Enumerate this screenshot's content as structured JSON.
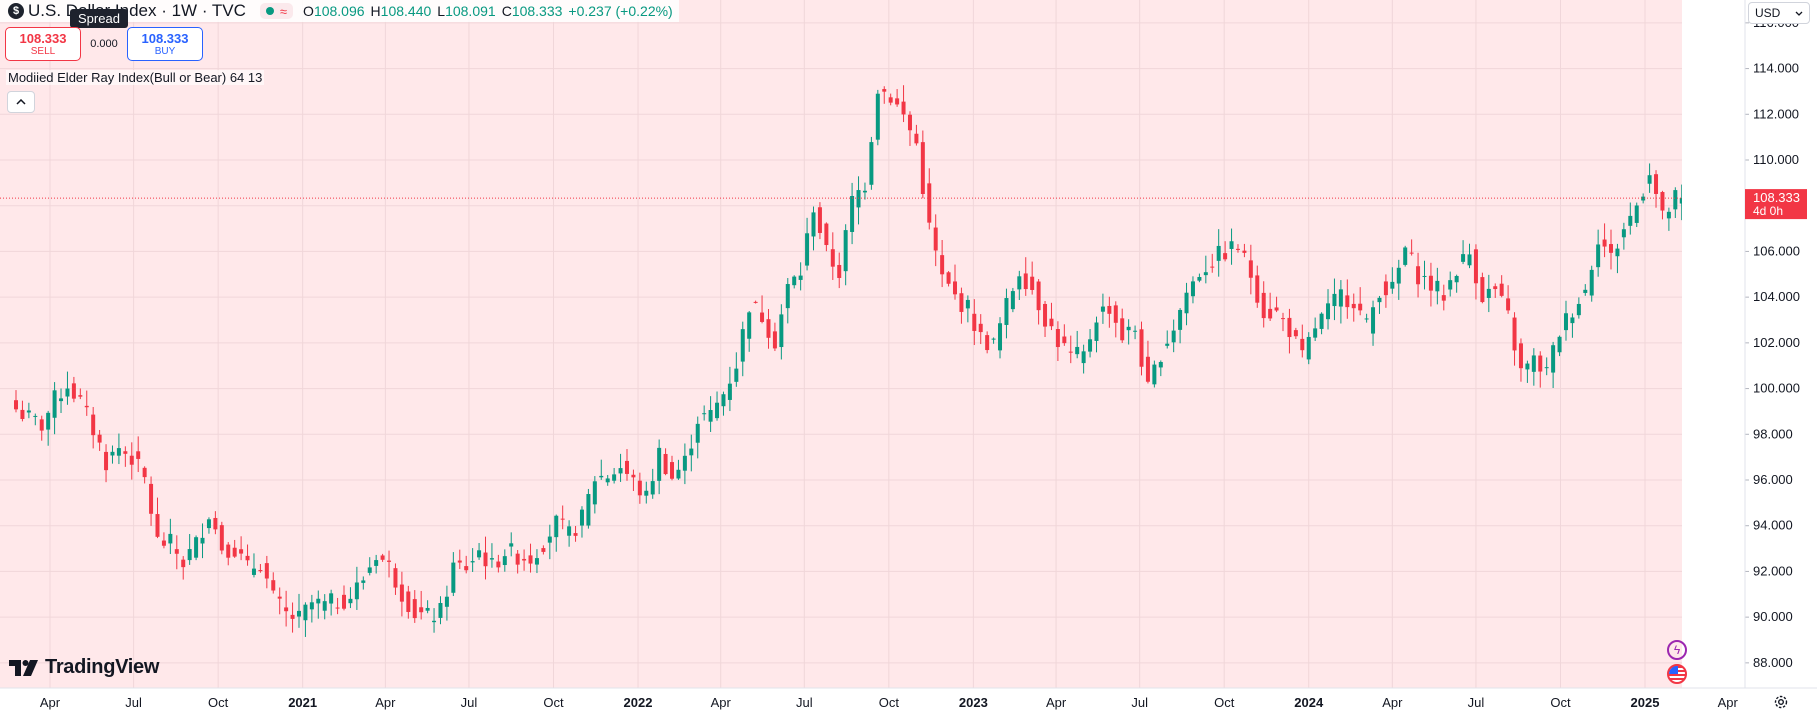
{
  "header": {
    "symbol_icon": "$",
    "title": "U.S. Dollar Index · 1W · TVC",
    "market_status_icon": "market-open-dot",
    "ohlc": [
      {
        "k": "O",
        "v": "108.096"
      },
      {
        "k": "H",
        "v": "108.440"
      },
      {
        "k": "L",
        "v": "108.091"
      },
      {
        "k": "C",
        "v": "108.333"
      },
      {
        "k": "",
        "v": "+0.237 (+0.22%)"
      }
    ]
  },
  "tooltip": "Spread",
  "trade": {
    "sell_price": "108.333",
    "sell_label": "SELL",
    "spread": "0.000",
    "buy_price": "108.333",
    "buy_label": "BUY"
  },
  "indicator": "Modiied Elder Ray Index(Bull or Bear) 64 13",
  "currency": "USD",
  "price_tag": {
    "price": "108.333",
    "countdown": "4d 0h"
  },
  "brand": "TradingView",
  "colors": {
    "up": "#089981",
    "down": "#f23645",
    "bg_tint": "#ffe8ea"
  },
  "chart_data": {
    "type": "candlestick",
    "interval": "1W",
    "y_ticks": [
      "88.000",
      "90.000",
      "92.000",
      "94.000",
      "96.000",
      "98.000",
      "100.000",
      "102.000",
      "104.000",
      "106.000",
      "108.000",
      "110.000",
      "112.000",
      "114.000",
      "116.000"
    ],
    "ylim": [
      86.9,
      117.0
    ],
    "x_labels": [
      {
        "label": "Apr",
        "date": "2020-04-01",
        "bold": false
      },
      {
        "label": "Jul",
        "date": "2020-07-01",
        "bold": false
      },
      {
        "label": "Oct",
        "date": "2020-10-01",
        "bold": false
      },
      {
        "label": "2021",
        "date": "2021-01-01",
        "bold": true
      },
      {
        "label": "Apr",
        "date": "2021-04-01",
        "bold": false
      },
      {
        "label": "Jul",
        "date": "2021-07-01",
        "bold": false
      },
      {
        "label": "Oct",
        "date": "2021-10-01",
        "bold": false
      },
      {
        "label": "2022",
        "date": "2022-01-01",
        "bold": true
      },
      {
        "label": "Apr",
        "date": "2022-04-01",
        "bold": false
      },
      {
        "label": "Jul",
        "date": "2022-07-01",
        "bold": false
      },
      {
        "label": "Oct",
        "date": "2022-10-01",
        "bold": false
      },
      {
        "label": "2023",
        "date": "2023-01-01",
        "bold": true
      },
      {
        "label": "Apr",
        "date": "2023-04-01",
        "bold": false
      },
      {
        "label": "Jul",
        "date": "2023-07-01",
        "bold": false
      },
      {
        "label": "Oct",
        "date": "2023-10-01",
        "bold": false
      },
      {
        "label": "2024",
        "date": "2024-01-01",
        "bold": true
      },
      {
        "label": "Apr",
        "date": "2024-04-01",
        "bold": false
      },
      {
        "label": "Jul",
        "date": "2024-07-01",
        "bold": false
      },
      {
        "label": "Oct",
        "date": "2024-10-01",
        "bold": false
      },
      {
        "label": "2025",
        "date": "2025-01-01",
        "bold": true
      },
      {
        "label": "Apr",
        "date": "2025-04-01",
        "bold": false
      }
    ],
    "last_price": 108.333,
    "weekly_closes": [
      {
        "week_start": "2020-02-24",
        "close": 99.1
      },
      {
        "week_start": "2020-03-09",
        "close": 98.7
      },
      {
        "week_start": "2020-03-23",
        "close": 98.4
      },
      {
        "week_start": "2020-04-06",
        "close": 99.5
      },
      {
        "week_start": "2020-04-20",
        "close": 100.2
      },
      {
        "week_start": "2020-05-04",
        "close": 99.4
      },
      {
        "week_start": "2020-05-18",
        "close": 98.2
      },
      {
        "week_start": "2020-06-01",
        "close": 96.8
      },
      {
        "week_start": "2020-06-15",
        "close": 97.4
      },
      {
        "week_start": "2020-06-29",
        "close": 97.0
      },
      {
        "week_start": "2020-07-13",
        "close": 96.0
      },
      {
        "week_start": "2020-07-27",
        "close": 93.3
      },
      {
        "week_start": "2020-08-10",
        "close": 93.2
      },
      {
        "week_start": "2020-08-24",
        "close": 92.4
      },
      {
        "week_start": "2020-09-07",
        "close": 93.2
      },
      {
        "week_start": "2020-09-21",
        "close": 94.6
      },
      {
        "week_start": "2020-10-05",
        "close": 93.1
      },
      {
        "week_start": "2020-10-19",
        "close": 93.0
      },
      {
        "week_start": "2020-11-02",
        "close": 92.1
      },
      {
        "week_start": "2020-11-16",
        "close": 92.4
      },
      {
        "week_start": "2020-11-30",
        "close": 90.8
      },
      {
        "week_start": "2020-12-14",
        "close": 90.1
      },
      {
        "week_start": "2020-12-28",
        "close": 89.9
      },
      {
        "week_start": "2021-01-11",
        "close": 90.6
      },
      {
        "week_start": "2021-01-25",
        "close": 90.5
      },
      {
        "week_start": "2021-02-08",
        "close": 90.7
      },
      {
        "week_start": "2021-02-22",
        "close": 90.9
      },
      {
        "week_start": "2021-03-08",
        "close": 91.7
      },
      {
        "week_start": "2021-03-22",
        "close": 92.8
      },
      {
        "week_start": "2021-04-05",
        "close": 92.2
      },
      {
        "week_start": "2021-04-19",
        "close": 91.1
      },
      {
        "week_start": "2021-05-03",
        "close": 90.2
      },
      {
        "week_start": "2021-05-17",
        "close": 90.0
      },
      {
        "week_start": "2021-05-31",
        "close": 90.2
      },
      {
        "week_start": "2021-06-14",
        "close": 92.2
      },
      {
        "week_start": "2021-06-28",
        "close": 92.2
      },
      {
        "week_start": "2021-07-12",
        "close": 92.9
      },
      {
        "week_start": "2021-07-26",
        "close": 92.2
      },
      {
        "week_start": "2021-08-09",
        "close": 92.9
      },
      {
        "week_start": "2021-08-23",
        "close": 92.7
      },
      {
        "week_start": "2021-09-06",
        "close": 92.6
      },
      {
        "week_start": "2021-09-20",
        "close": 93.3
      },
      {
        "week_start": "2021-10-04",
        "close": 94.1
      },
      {
        "week_start": "2021-10-18",
        "close": 93.6
      },
      {
        "week_start": "2021-11-01",
        "close": 94.3
      },
      {
        "week_start": "2021-11-15",
        "close": 96.1
      },
      {
        "week_start": "2021-11-29",
        "close": 96.2
      },
      {
        "week_start": "2021-12-13",
        "close": 96.6
      },
      {
        "week_start": "2021-12-27",
        "close": 95.9
      },
      {
        "week_start": "2022-01-10",
        "close": 95.2
      },
      {
        "week_start": "2022-01-24",
        "close": 97.2
      },
      {
        "week_start": "2022-02-07",
        "close": 96.1
      },
      {
        "week_start": "2022-02-21",
        "close": 96.8
      },
      {
        "week_start": "2022-03-07",
        "close": 98.7
      },
      {
        "week_start": "2022-03-21",
        "close": 98.8
      },
      {
        "week_start": "2022-04-04",
        "close": 99.8
      },
      {
        "week_start": "2022-04-18",
        "close": 101.1
      },
      {
        "week_start": "2022-05-02",
        "close": 103.7
      },
      {
        "week_start": "2022-05-16",
        "close": 103.2
      },
      {
        "week_start": "2022-05-30",
        "close": 102.1
      },
      {
        "week_start": "2022-06-13",
        "close": 104.4
      },
      {
        "week_start": "2022-06-27",
        "close": 105.1
      },
      {
        "week_start": "2022-07-11",
        "close": 108.0
      },
      {
        "week_start": "2022-07-25",
        "close": 105.9
      },
      {
        "week_start": "2022-08-08",
        "close": 105.1
      },
      {
        "week_start": "2022-08-22",
        "close": 108.2
      },
      {
        "week_start": "2022-09-05",
        "close": 109.0
      },
      {
        "week_start": "2022-09-19",
        "close": 113.2
      },
      {
        "week_start": "2022-10-03",
        "close": 112.8
      },
      {
        "week_start": "2022-10-17",
        "close": 111.9
      },
      {
        "week_start": "2022-10-31",
        "close": 110.7
      },
      {
        "week_start": "2022-11-14",
        "close": 107.0
      },
      {
        "week_start": "2022-11-28",
        "close": 104.8
      },
      {
        "week_start": "2022-12-12",
        "close": 104.0
      },
      {
        "week_start": "2022-12-26",
        "close": 103.5
      },
      {
        "week_start": "2023-01-09",
        "close": 102.2
      },
      {
        "week_start": "2023-01-23",
        "close": 101.9
      },
      {
        "week_start": "2023-02-06",
        "close": 103.6
      },
      {
        "week_start": "2023-02-20",
        "close": 105.2
      },
      {
        "week_start": "2023-03-06",
        "close": 104.4
      },
      {
        "week_start": "2023-03-20",
        "close": 103.1
      },
      {
        "week_start": "2023-04-03",
        "close": 102.1
      },
      {
        "week_start": "2023-04-17",
        "close": 101.4
      },
      {
        "week_start": "2023-05-01",
        "close": 101.4
      },
      {
        "week_start": "2023-05-15",
        "close": 103.2
      },
      {
        "week_start": "2023-05-29",
        "close": 103.6
      },
      {
        "week_start": "2023-06-12",
        "close": 102.3
      },
      {
        "week_start": "2023-06-26",
        "close": 102.6
      },
      {
        "week_start": "2023-07-10",
        "close": 99.9
      },
      {
        "week_start": "2023-07-24",
        "close": 101.6
      },
      {
        "week_start": "2023-08-07",
        "close": 102.7
      },
      {
        "week_start": "2023-08-21",
        "close": 104.2
      },
      {
        "week_start": "2023-09-04",
        "close": 105.1
      },
      {
        "week_start": "2023-09-18",
        "close": 105.6
      },
      {
        "week_start": "2023-10-02",
        "close": 106.0
      },
      {
        "week_start": "2023-10-16",
        "close": 106.2
      },
      {
        "week_start": "2023-10-30",
        "close": 105.0
      },
      {
        "week_start": "2023-11-13",
        "close": 103.4
      },
      {
        "week_start": "2023-11-27",
        "close": 103.3
      },
      {
        "week_start": "2023-12-11",
        "close": 102.6
      },
      {
        "week_start": "2023-12-25",
        "close": 101.3
      },
      {
        "week_start": "2024-01-08",
        "close": 102.7
      },
      {
        "week_start": "2024-01-22",
        "close": 103.4
      },
      {
        "week_start": "2024-02-05",
        "close": 104.1
      },
      {
        "week_start": "2024-02-19",
        "close": 103.9
      },
      {
        "week_start": "2024-03-04",
        "close": 102.7
      },
      {
        "week_start": "2024-03-18",
        "close": 104.4
      },
      {
        "week_start": "2024-04-01",
        "close": 104.3
      },
      {
        "week_start": "2024-04-15",
        "close": 106.1
      },
      {
        "week_start": "2024-04-29",
        "close": 105.0
      },
      {
        "week_start": "2024-05-13",
        "close": 104.5
      },
      {
        "week_start": "2024-05-27",
        "close": 104.1
      },
      {
        "week_start": "2024-06-10",
        "close": 105.3
      },
      {
        "week_start": "2024-06-24",
        "close": 105.9
      },
      {
        "week_start": "2024-07-08",
        "close": 104.1
      },
      {
        "week_start": "2024-07-22",
        "close": 104.3
      },
      {
        "week_start": "2024-08-05",
        "close": 103.1
      },
      {
        "week_start": "2024-08-19",
        "close": 100.7
      },
      {
        "week_start": "2024-09-02",
        "close": 101.2
      },
      {
        "week_start": "2024-09-16",
        "close": 100.7
      },
      {
        "week_start": "2024-09-30",
        "close": 102.5
      },
      {
        "week_start": "2024-10-14",
        "close": 103.5
      },
      {
        "week_start": "2024-10-28",
        "close": 104.3
      },
      {
        "week_start": "2024-11-11",
        "close": 106.7
      },
      {
        "week_start": "2024-11-25",
        "close": 105.7
      },
      {
        "week_start": "2024-12-09",
        "close": 107.0
      },
      {
        "week_start": "2024-12-23",
        "close": 108.0
      },
      {
        "week_start": "2025-01-06",
        "close": 109.6
      },
      {
        "week_start": "2025-01-20",
        "close": 107.4
      },
      {
        "week_start": "2025-02-03",
        "close": 108.3
      },
      {
        "week_start": "2025-02-10",
        "close": 108.333
      }
    ]
  }
}
